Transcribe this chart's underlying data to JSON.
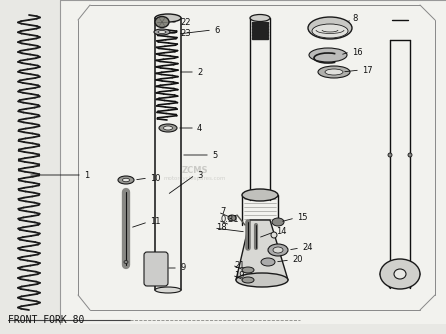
{
  "title": "FRONT FORK 80",
  "bg_color": "#e8e8e4",
  "paper_color": "#f0f0ec",
  "line_color": "#1a1a1a",
  "dark_color": "#111111",
  "gray_color": "#888888",
  "label_fs": 6.0,
  "title_fs": 7.0
}
